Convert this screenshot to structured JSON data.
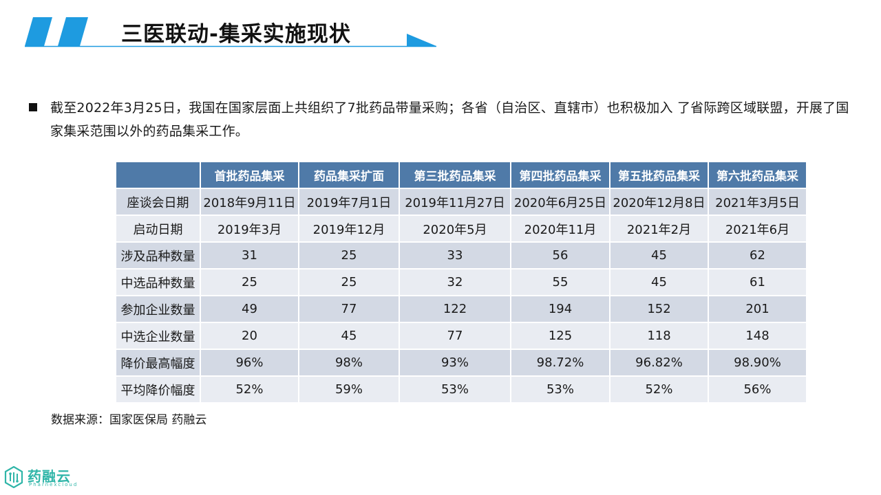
{
  "header": {
    "title": "三医联动-集采实施现状"
  },
  "colors": {
    "accent_blue": "#1e9be0",
    "table_header": "#4f7aa8",
    "row_odd": "#d3d9e4",
    "row_even": "#e9ecf2",
    "logo_teal": "#2fb5a8"
  },
  "bullet": {
    "text": "截至2022年3月25日，我国在国家层面上共组织了7批药品带量采购；各省（自治区、直辖市）也积极加入 了省际跨区域联盟，开展了国家集采范围以外的药品集采工作。"
  },
  "table": {
    "columns": [
      "首批药品集采",
      "药品集采扩面",
      "第三批药品集采",
      "第四批药品集采",
      "第五批药品集采",
      "第六批药品集采"
    ],
    "rows": [
      {
        "label": "座谈会日期",
        "cells": [
          "2018年9月11日",
          "2019年7月1日",
          "2019年11月27日",
          "2020年6月25日",
          "2020年12月8日",
          "2021年3月5日"
        ]
      },
      {
        "label": "启动日期",
        "cells": [
          "2019年3月",
          "2019年12月",
          "2020年5月",
          "2020年11月",
          "2021年2月",
          "2021年6月"
        ]
      },
      {
        "label": "涉及品种数量",
        "cells": [
          "31",
          "25",
          "33",
          "56",
          "45",
          "62"
        ]
      },
      {
        "label": "中选品种数量",
        "cells": [
          "25",
          "25",
          "32",
          "55",
          "45",
          "61"
        ]
      },
      {
        "label": "参加企业数量",
        "cells": [
          "49",
          "77",
          "122",
          "194",
          "152",
          "201"
        ]
      },
      {
        "label": "中选企业数量",
        "cells": [
          "20",
          "45",
          "77",
          "125",
          "118",
          "148"
        ]
      },
      {
        "label": "降价最高幅度",
        "cells": [
          "96%",
          "98%",
          "93%",
          "98.72%",
          "96.82%",
          "98.90%"
        ]
      },
      {
        "label": "平均降价幅度",
        "cells": [
          "52%",
          "59%",
          "53%",
          "53%",
          "52%",
          "56%"
        ]
      }
    ]
  },
  "source": {
    "text": "数据来源：国家医保局 药融云"
  },
  "logo": {
    "name_cn": "药融云",
    "name_en": "Pharnexcloud"
  }
}
